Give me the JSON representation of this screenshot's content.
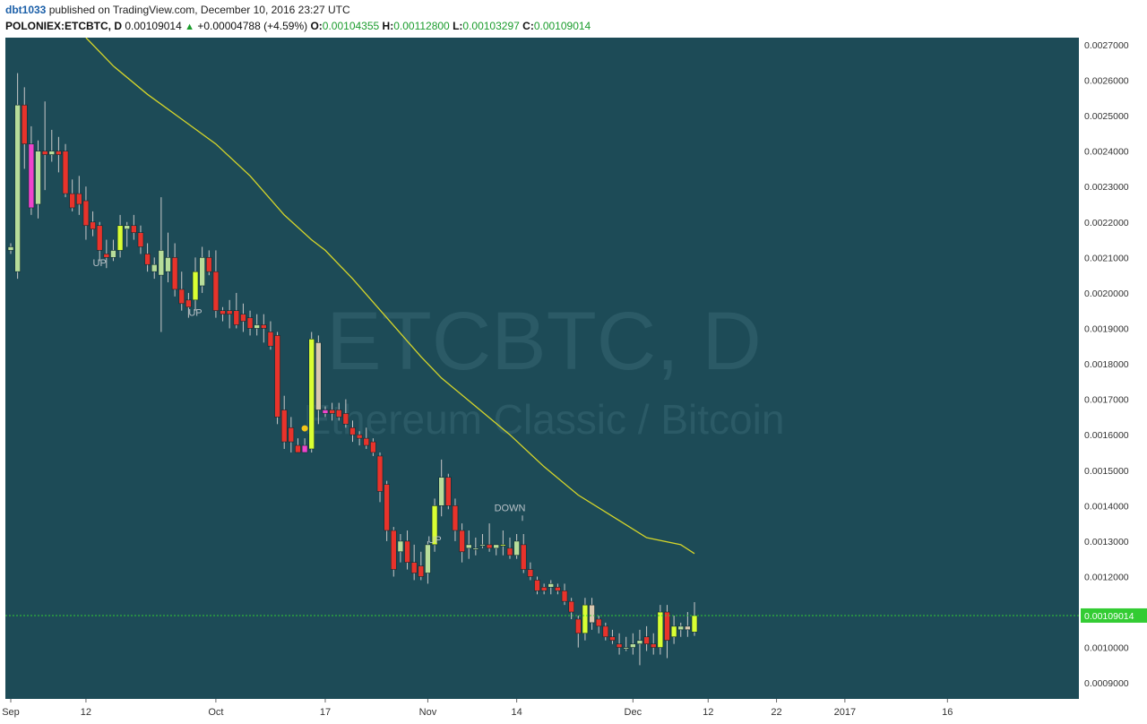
{
  "header": {
    "user": "dbt1033",
    "published_text": "published on TradingView.com, December 10, 2016 23:27 UTC",
    "symbol": "POLONIEX:ETCBTC, D",
    "last_price": "0.00109014",
    "change_text": "+0.00004788 (+4.59%)",
    "up_arrow_icon": "triangle-up-icon",
    "open_label": "O:",
    "open_value": "0.00104355",
    "high_label": "H:",
    "high_value": "0.00112800",
    "low_label": "L:",
    "low_value": "0.00103297",
    "close_label": "C:",
    "close_value": "0.00109014"
  },
  "watermark": {
    "symbol": "ETCBTC, D",
    "description": "Ethereum Classic / Bitcoin"
  },
  "colors": {
    "background": "#1d4b57",
    "axis_background": "#ffffff",
    "bull_candle": "#b7dd9a",
    "bull_candle_signal": "#d9ff33",
    "bear_candle": "#e8332b",
    "doji_candle": "#d9c8b0",
    "magenta_candle": "#ee44cc",
    "moving_average": "#d6d62a",
    "last_price_line": "#33cc33",
    "signal_text": "#b9c2c8"
  },
  "chart_data": {
    "type": "candlestick",
    "symbol": "POLONIEX:ETCBTC",
    "interval": "D",
    "y_axis": {
      "ylim": [
        0.000855,
        0.00272
      ],
      "ticks": [
        "0.0009000",
        "0.0010000",
        "0.0011000",
        "0.0012000",
        "0.0013000",
        "0.0014000",
        "0.0015000",
        "0.0016000",
        "0.0017000",
        "0.0018000",
        "0.0019000",
        "0.0020000",
        "0.0021000",
        "0.0022000",
        "0.0023000",
        "0.0024000",
        "0.0025000",
        "0.0026000",
        "0.0027000"
      ],
      "last_price_label": "0.00109014",
      "last_price": 0.00109014
    },
    "x_axis": {
      "labels": [
        {
          "label": "Sep",
          "day": 0
        },
        {
          "label": "12",
          "day": 11
        },
        {
          "label": "Oct",
          "day": 30
        },
        {
          "label": "17",
          "day": 46
        },
        {
          "label": "Nov",
          "day": 61
        },
        {
          "label": "14",
          "day": 74
        },
        {
          "label": "Dec",
          "day": 91
        },
        {
          "label": "12",
          "day": 102
        },
        {
          "label": "22",
          "day": 112
        },
        {
          "label": "2017",
          "day": 122
        },
        {
          "label": "16",
          "day": 137
        }
      ]
    },
    "candles": [
      {
        "d": 0,
        "o": 0.00212,
        "h": 0.00214,
        "l": 0.00211,
        "c": 0.00213
      },
      {
        "d": 1,
        "o": 0.00206,
        "h": 0.00262,
        "l": 0.00204,
        "c": 0.00253
      },
      {
        "d": 2,
        "o": 0.00253,
        "h": 0.00258,
        "l": 0.00235,
        "c": 0.00242
      },
      {
        "d": 3,
        "o": 0.00242,
        "h": 0.00247,
        "l": 0.00222,
        "c": 0.00224
      },
      {
        "d": 4,
        "o": 0.00225,
        "h": 0.00243,
        "l": 0.00221,
        "c": 0.0024
      },
      {
        "d": 5,
        "o": 0.0024,
        "h": 0.00254,
        "l": 0.00229,
        "c": 0.00239
      },
      {
        "d": 6,
        "o": 0.00239,
        "h": 0.00246,
        "l": 0.00237,
        "c": 0.0024
      },
      {
        "d": 7,
        "o": 0.0024,
        "h": 0.00244,
        "l": 0.00234,
        "c": 0.00239
      },
      {
        "d": 8,
        "o": 0.0024,
        "h": 0.00242,
        "l": 0.00227,
        "c": 0.00228
      },
      {
        "d": 9,
        "o": 0.00228,
        "h": 0.00232,
        "l": 0.00223,
        "c": 0.00224
      },
      {
        "d": 10,
        "o": 0.00228,
        "h": 0.00233,
        "l": 0.00222,
        "c": 0.00225
      },
      {
        "d": 11,
        "o": 0.00226,
        "h": 0.0023,
        "l": 0.00215,
        "c": 0.00219
      },
      {
        "d": 12,
        "o": 0.0022,
        "h": 0.00223,
        "l": 0.00216,
        "c": 0.00218
      },
      {
        "d": 13,
        "o": 0.00219,
        "h": 0.0022,
        "l": 0.00209,
        "c": 0.00212
      },
      {
        "d": 14,
        "o": 0.00211,
        "h": 0.00215,
        "l": 0.00207,
        "c": 0.0021
      },
      {
        "d": 15,
        "o": 0.0021,
        "h": 0.00215,
        "l": 0.00209,
        "c": 0.00212
      },
      {
        "d": 16,
        "o": 0.00212,
        "h": 0.00222,
        "l": 0.0021,
        "c": 0.00219
      },
      {
        "d": 17,
        "o": 0.00218,
        "h": 0.0022,
        "l": 0.00213,
        "c": 0.00219
      },
      {
        "d": 18,
        "o": 0.00219,
        "h": 0.00222,
        "l": 0.00215,
        "c": 0.00217
      },
      {
        "d": 19,
        "o": 0.00217,
        "h": 0.00219,
        "l": 0.00211,
        "c": 0.00213
      },
      {
        "d": 20,
        "o": 0.00211,
        "h": 0.00214,
        "l": 0.00206,
        "c": 0.00208
      },
      {
        "d": 21,
        "o": 0.00206,
        "h": 0.0021,
        "l": 0.00204,
        "c": 0.00208
      },
      {
        "d": 22,
        "o": 0.00205,
        "h": 0.00227,
        "l": 0.00189,
        "c": 0.00212
      },
      {
        "d": 23,
        "o": 0.00206,
        "h": 0.00217,
        "l": 0.00203,
        "c": 0.0021
      },
      {
        "d": 24,
        "o": 0.0021,
        "h": 0.00214,
        "l": 0.00199,
        "c": 0.00201
      },
      {
        "d": 25,
        "o": 0.00201,
        "h": 0.00206,
        "l": 0.00195,
        "c": 0.00197
      },
      {
        "d": 26,
        "o": 0.00198,
        "h": 0.002,
        "l": 0.00193,
        "c": 0.00196
      },
      {
        "d": 27,
        "o": 0.00198,
        "h": 0.0021,
        "l": 0.00195,
        "c": 0.00206
      },
      {
        "d": 28,
        "o": 0.00202,
        "h": 0.00213,
        "l": 0.002,
        "c": 0.0021
      },
      {
        "d": 29,
        "o": 0.0021,
        "h": 0.00212,
        "l": 0.00205,
        "c": 0.00206
      },
      {
        "d": 30,
        "o": 0.00206,
        "h": 0.00212,
        "l": 0.00193,
        "c": 0.00195
      },
      {
        "d": 31,
        "o": 0.00195,
        "h": 0.00196,
        "l": 0.00192,
        "c": 0.00194
      },
      {
        "d": 32,
        "o": 0.00195,
        "h": 0.00198,
        "l": 0.0019,
        "c": 0.00194
      },
      {
        "d": 33,
        "o": 0.00195,
        "h": 0.002,
        "l": 0.0019,
        "c": 0.00191
      },
      {
        "d": 34,
        "o": 0.00194,
        "h": 0.00197,
        "l": 0.00189,
        "c": 0.00192
      },
      {
        "d": 35,
        "o": 0.00193,
        "h": 0.00195,
        "l": 0.00188,
        "c": 0.0019
      },
      {
        "d": 36,
        "o": 0.0019,
        "h": 0.00194,
        "l": 0.00188,
        "c": 0.00191
      },
      {
        "d": 37,
        "o": 0.00191,
        "h": 0.00194,
        "l": 0.00186,
        "c": 0.0019
      },
      {
        "d": 38,
        "o": 0.00189,
        "h": 0.00192,
        "l": 0.00184,
        "c": 0.00185
      },
      {
        "d": 39,
        "o": 0.00188,
        "h": 0.00189,
        "l": 0.00163,
        "c": 0.00165
      },
      {
        "d": 40,
        "o": 0.00167,
        "h": 0.00171,
        "l": 0.00156,
        "c": 0.00158
      },
      {
        "d": 41,
        "o": 0.00162,
        "h": 0.00165,
        "l": 0.00155,
        "c": 0.00158
      },
      {
        "d": 42,
        "o": 0.00157,
        "h": 0.00159,
        "l": 0.00155,
        "c": 0.00155
      },
      {
        "d": 43,
        "o": 0.00157,
        "h": 0.00159,
        "l": 0.00155,
        "c": 0.00155
      },
      {
        "d": 44,
        "o": 0.00156,
        "h": 0.00189,
        "l": 0.00155,
        "c": 0.00187
      },
      {
        "d": 45,
        "o": 0.00186,
        "h": 0.00188,
        "l": 0.00163,
        "c": 0.00167
      },
      {
        "d": 46,
        "o": 0.00167,
        "h": 0.00168,
        "l": 0.00165,
        "c": 0.00166
      },
      {
        "d": 47,
        "o": 0.00167,
        "h": 0.00169,
        "l": 0.00164,
        "c": 0.00166
      },
      {
        "d": 48,
        "o": 0.00167,
        "h": 0.00169,
        "l": 0.00164,
        "c": 0.00165
      },
      {
        "d": 49,
        "o": 0.00166,
        "h": 0.0017,
        "l": 0.00162,
        "c": 0.00163
      },
      {
        "d": 50,
        "o": 0.00162,
        "h": 0.00164,
        "l": 0.00158,
        "c": 0.0016
      },
      {
        "d": 51,
        "o": 0.0016,
        "h": 0.00161,
        "l": 0.00157,
        "c": 0.00159
      },
      {
        "d": 52,
        "o": 0.00159,
        "h": 0.00162,
        "l": 0.00156,
        "c": 0.00157
      },
      {
        "d": 53,
        "o": 0.00158,
        "h": 0.00159,
        "l": 0.00154,
        "c": 0.00155
      },
      {
        "d": 54,
        "o": 0.00154,
        "h": 0.00155,
        "l": 0.00141,
        "c": 0.00144
      },
      {
        "d": 55,
        "o": 0.00146,
        "h": 0.00147,
        "l": 0.0013,
        "c": 0.00133
      },
      {
        "d": 56,
        "o": 0.00133,
        "h": 0.00134,
        "l": 0.0012,
        "c": 0.00122
      },
      {
        "d": 57,
        "o": 0.00127,
        "h": 0.00132,
        "l": 0.00124,
        "c": 0.0013
      },
      {
        "d": 58,
        "o": 0.0013,
        "h": 0.00133,
        "l": 0.00122,
        "c": 0.00124
      },
      {
        "d": 59,
        "o": 0.00124,
        "h": 0.00129,
        "l": 0.00119,
        "c": 0.00121
      },
      {
        "d": 60,
        "o": 0.00123,
        "h": 0.00127,
        "l": 0.00119,
        "c": 0.0012
      },
      {
        "d": 61,
        "o": 0.00121,
        "h": 0.0013,
        "l": 0.00118,
        "c": 0.00129
      },
      {
        "d": 62,
        "o": 0.00129,
        "h": 0.00142,
        "l": 0.00127,
        "c": 0.0014
      },
      {
        "d": 63,
        "o": 0.0014,
        "h": 0.00153,
        "l": 0.00137,
        "c": 0.00148
      },
      {
        "d": 64,
        "o": 0.00148,
        "h": 0.00149,
        "l": 0.00139,
        "c": 0.0014
      },
      {
        "d": 65,
        "o": 0.0014,
        "h": 0.00142,
        "l": 0.0013,
        "c": 0.00133
      },
      {
        "d": 66,
        "o": 0.00133,
        "h": 0.00135,
        "l": 0.00124,
        "c": 0.00127
      },
      {
        "d": 67,
        "o": 0.00128,
        "h": 0.00133,
        "l": 0.00125,
        "c": 0.00129
      },
      {
        "d": 68,
        "o": 0.00128,
        "h": 0.00131,
        "l": 0.00126,
        "c": 0.00128
      },
      {
        "d": 69,
        "o": 0.00129,
        "h": 0.00132,
        "l": 0.00128,
        "c": 0.00129
      },
      {
        "d": 70,
        "o": 0.00129,
        "h": 0.00135,
        "l": 0.00127,
        "c": 0.00128
      },
      {
        "d": 71,
        "o": 0.00128,
        "h": 0.00129,
        "l": 0.00126,
        "c": 0.00129
      },
      {
        "d": 72,
        "o": 0.00129,
        "h": 0.00133,
        "l": 0.00126,
        "c": 0.00129
      },
      {
        "d": 73,
        "o": 0.00128,
        "h": 0.00131,
        "l": 0.00125,
        "c": 0.00126
      },
      {
        "d": 74,
        "o": 0.00126,
        "h": 0.00132,
        "l": 0.00125,
        "c": 0.0013
      },
      {
        "d": 75,
        "o": 0.00129,
        "h": 0.00132,
        "l": 0.00121,
        "c": 0.00122
      },
      {
        "d": 76,
        "o": 0.00122,
        "h": 0.00124,
        "l": 0.00119,
        "c": 0.0012
      },
      {
        "d": 77,
        "o": 0.00119,
        "h": 0.0012,
        "l": 0.00115,
        "c": 0.00116
      },
      {
        "d": 78,
        "o": 0.00117,
        "h": 0.00118,
        "l": 0.00115,
        "c": 0.00116
      },
      {
        "d": 79,
        "o": 0.00117,
        "h": 0.00119,
        "l": 0.00115,
        "c": 0.00118
      },
      {
        "d": 80,
        "o": 0.00117,
        "h": 0.00118,
        "l": 0.00115,
        "c": 0.00116
      },
      {
        "d": 81,
        "o": 0.00116,
        "h": 0.00118,
        "l": 0.00112,
        "c": 0.00113
      },
      {
        "d": 82,
        "o": 0.00113,
        "h": 0.00114,
        "l": 0.00108,
        "c": 0.0011
      },
      {
        "d": 83,
        "o": 0.00108,
        "h": 0.00109,
        "l": 0.001,
        "c": 0.00104
      },
      {
        "d": 84,
        "o": 0.00104,
        "h": 0.00114,
        "l": 0.00102,
        "c": 0.00112
      },
      {
        "d": 85,
        "o": 0.00112,
        "h": 0.00114,
        "l": 0.00105,
        "c": 0.00107
      },
      {
        "d": 86,
        "o": 0.00108,
        "h": 0.00109,
        "l": 0.00104,
        "c": 0.00106
      },
      {
        "d": 87,
        "o": 0.00106,
        "h": 0.00107,
        "l": 0.00102,
        "c": 0.00103
      },
      {
        "d": 88,
        "o": 0.00103,
        "h": 0.00105,
        "l": 0.00101,
        "c": 0.00102
      },
      {
        "d": 89,
        "o": 0.00101,
        "h": 0.00104,
        "l": 0.00098,
        "c": 0.001
      },
      {
        "d": 90,
        "o": 0.001,
        "h": 0.00103,
        "l": 0.00099,
        "c": 0.001
      },
      {
        "d": 91,
        "o": 0.001,
        "h": 0.00104,
        "l": 0.00098,
        "c": 0.00101
      },
      {
        "d": 92,
        "o": 0.00101,
        "h": 0.00105,
        "l": 0.00095,
        "c": 0.00102
      },
      {
        "d": 93,
        "o": 0.00103,
        "h": 0.00106,
        "l": 0.00099,
        "c": 0.00101
      },
      {
        "d": 94,
        "o": 0.00101,
        "h": 0.00104,
        "l": 0.00098,
        "c": 0.001
      },
      {
        "d": 95,
        "o": 0.001,
        "h": 0.00112,
        "l": 0.00098,
        "c": 0.0011
      },
      {
        "d": 96,
        "o": 0.0011,
        "h": 0.00112,
        "l": 0.00097,
        "c": 0.00102
      },
      {
        "d": 97,
        "o": 0.00103,
        "h": 0.00109,
        "l": 0.00101,
        "c": 0.00106
      },
      {
        "d": 98,
        "o": 0.00105,
        "h": 0.00107,
        "l": 0.00103,
        "c": 0.00106
      },
      {
        "d": 99,
        "o": 0.00106,
        "h": 0.0011,
        "l": 0.00103,
        "c": 0.00105
      },
      {
        "d": 100,
        "o": 0.00104355,
        "h": 0.001128,
        "l": 0.00103297,
        "c": 0.00109014
      }
    ],
    "candle_colors": {
      "3": "magenta",
      "43": "magenta",
      "46": "magenta",
      "16": "signal",
      "27": "signal",
      "44": "signal",
      "62": "signal",
      "72": "signal",
      "84": "signal",
      "95": "signal",
      "97": "signal",
      "100": "signal",
      "45": "doji",
      "85": "doji",
      "99": "doji"
    },
    "moving_average": [
      {
        "d": 11,
        "v": 0.00272
      },
      {
        "d": 15,
        "v": 0.00264
      },
      {
        "d": 20,
        "v": 0.00256
      },
      {
        "d": 25,
        "v": 0.00249
      },
      {
        "d": 30,
        "v": 0.00242
      },
      {
        "d": 35,
        "v": 0.00233
      },
      {
        "d": 40,
        "v": 0.00222
      },
      {
        "d": 44,
        "v": 0.00215
      },
      {
        "d": 46,
        "v": 0.00212
      },
      {
        "d": 50,
        "v": 0.00204
      },
      {
        "d": 55,
        "v": 0.00193
      },
      {
        "d": 60,
        "v": 0.00182
      },
      {
        "d": 63,
        "v": 0.00176
      },
      {
        "d": 68,
        "v": 0.00168
      },
      {
        "d": 73,
        "v": 0.0016
      },
      {
        "d": 78,
        "v": 0.00151
      },
      {
        "d": 83,
        "v": 0.00143
      },
      {
        "d": 88,
        "v": 0.00137
      },
      {
        "d": 93,
        "v": 0.00131
      },
      {
        "d": 98,
        "v": 0.00129
      },
      {
        "d": 100,
        "v": 0.001265
      }
    ],
    "signals": [
      {
        "label": "UP",
        "d": 13,
        "price": 0.002075,
        "marker": false
      },
      {
        "label": "UP",
        "d": 27,
        "price": 0.001935,
        "marker": false
      },
      {
        "label": "UP",
        "d": 62,
        "price": 0.001295,
        "marker": false
      },
      {
        "label": "DOWN",
        "d": 73,
        "price": 0.001385,
        "marker": true
      }
    ],
    "dots": [
      {
        "d": 43,
        "price": 0.001618
      }
    ]
  }
}
